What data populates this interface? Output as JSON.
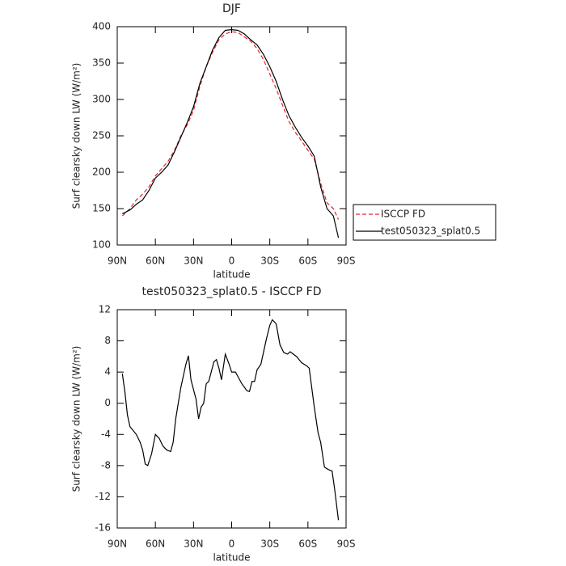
{
  "chart_data": [
    {
      "type": "line",
      "title": "DJF",
      "xlabel": "latitude",
      "ylabel": "Surf clearsky down LW (W/m²)",
      "x": [
        86,
        80,
        75,
        70,
        65,
        60,
        55,
        50,
        45,
        40,
        35,
        30,
        25,
        20,
        15,
        10,
        5,
        0,
        -5,
        -10,
        -15,
        -20,
        -25,
        -30,
        -35,
        -40,
        -45,
        -50,
        -55,
        -60,
        -65,
        -70,
        -75,
        -80,
        -84
      ],
      "series": [
        {
          "name": "ISCCP FD",
          "color": "#e8242a",
          "dash": true,
          "values": [
            140,
            150,
            162,
            170,
            180,
            195,
            205,
            215,
            230,
            250,
            265,
            285,
            318,
            345,
            365,
            382,
            390,
            393,
            392,
            386,
            380,
            370,
            355,
            335,
            315,
            292,
            270,
            255,
            243,
            230,
            218,
            185,
            158,
            150,
            135
          ]
        },
        {
          "name": "test050323_splat0.5",
          "color": "#000000",
          "dash": false,
          "values": [
            143,
            148,
            156,
            162,
            175,
            192,
            200,
            210,
            228,
            248,
            268,
            290,
            322,
            345,
            368,
            385,
            395,
            396,
            395,
            390,
            382,
            375,
            362,
            345,
            325,
            300,
            278,
            262,
            248,
            236,
            222,
            180,
            150,
            140,
            110
          ]
        }
      ],
      "xlim": [
        90,
        -90
      ],
      "xticks": [
        {
          "value": 90,
          "label": "90N"
        },
        {
          "value": 60,
          "label": "60N"
        },
        {
          "value": 30,
          "label": "30N"
        },
        0,
        {
          "value": -30,
          "label": "30S"
        },
        {
          "value": -60,
          "label": "60S"
        },
        {
          "value": -90,
          "label": "90S"
        }
      ],
      "ylim": [
        100,
        400
      ],
      "yticks": [
        100,
        150,
        200,
        250,
        300,
        350,
        400
      ],
      "legend": "right"
    },
    {
      "type": "line",
      "title": "test050323_splat0.5 - ISCCP FD",
      "xlabel": "latitude",
      "ylabel": "Surf clearsky down LW (W/m²)",
      "x": [
        86,
        84,
        82,
        80,
        75,
        72,
        70,
        68,
        66,
        63,
        60,
        57,
        54,
        51,
        48,
        46,
        44,
        40,
        36,
        34,
        32,
        28,
        26,
        24,
        22,
        20,
        18,
        14,
        12,
        10,
        8,
        5,
        2,
        0,
        -3,
        -8,
        -12,
        -14,
        -16,
        -18,
        -20,
        -23,
        -27,
        -30,
        -32,
        -35,
        -38,
        -41,
        -44,
        -46,
        -51,
        -55,
        -59,
        -61,
        -65,
        -68,
        -70,
        -73,
        -76,
        -79,
        -81,
        -84
      ],
      "series": [
        {
          "color": "#000000",
          "dash": false,
          "values": [
            3.8,
            1.5,
            -1.5,
            -3,
            -4,
            -5,
            -6,
            -7.8,
            -8,
            -6.5,
            -4,
            -4.5,
            -5.5,
            -6,
            -6.2,
            -5,
            -2,
            2,
            5,
            6.1,
            3,
            0.5,
            -2,
            -0.5,
            0,
            2.5,
            2.8,
            5.3,
            5.6,
            4.5,
            3,
            6.3,
            5,
            4,
            4,
            2.5,
            1.6,
            1.5,
            2.8,
            2.8,
            4.3,
            5,
            8,
            10,
            10.7,
            10.2,
            7.5,
            6.5,
            6.3,
            6.6,
            6,
            5.2,
            4.8,
            4.5,
            -0.5,
            -3.8,
            -5,
            -8.2,
            -8.5,
            -8.7,
            -11,
            -15
          ]
        }
      ],
      "xlim": [
        90,
        -90
      ],
      "xticks": [
        {
          "value": 90,
          "label": "90N"
        },
        {
          "value": 60,
          "label": "60N"
        },
        {
          "value": 30,
          "label": "30N"
        },
        0,
        {
          "value": -30,
          "label": "30S"
        },
        {
          "value": -60,
          "label": "60S"
        },
        {
          "value": -90,
          "label": "90S"
        }
      ],
      "ylim": [
        -16,
        12
      ],
      "yticks": [
        -16,
        -12,
        -8,
        -4,
        0,
        4,
        8,
        12
      ]
    }
  ]
}
